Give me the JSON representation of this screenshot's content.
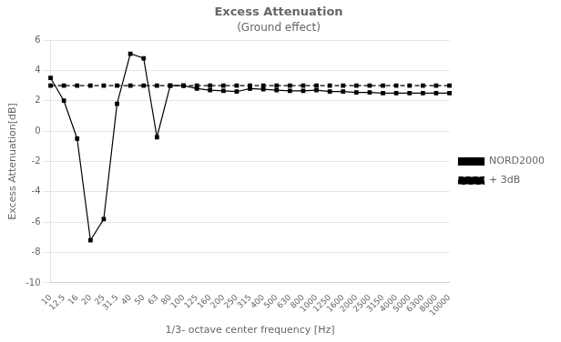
{
  "chart_data": {
    "type": "line",
    "title": "Excess Attenuation",
    "subtitle": "(Ground effect)",
    "x_label": "1/3- octave center frequency [Hz]",
    "y_label": "Excess Attenuation[dB]",
    "categories": [
      "10",
      "12.5",
      "16",
      "20",
      "25",
      "31.5",
      "40",
      "50",
      "63",
      "80",
      "100",
      "125",
      "160",
      "200",
      "250",
      "315",
      "400",
      "500",
      "630",
      "800",
      "1000",
      "1250",
      "1600",
      "2000",
      "2500",
      "3150",
      "4000",
      "5000",
      "6300",
      "8000",
      "10000"
    ],
    "series": [
      {
        "name": "NORD2000",
        "color": "#000000",
        "marker": "square",
        "line_style": "solid",
        "values": [
          3.5,
          2.0,
          -0.5,
          -7.2,
          -5.8,
          1.8,
          5.1,
          4.8,
          -0.4,
          3.0,
          3.0,
          2.8,
          2.7,
          2.65,
          2.6,
          2.8,
          2.75,
          2.7,
          2.65,
          2.65,
          2.7,
          2.6,
          2.6,
          2.55,
          2.55,
          2.5,
          2.5,
          2.5,
          2.5,
          2.5,
          2.5
        ]
      },
      {
        "name": "+ 3dB",
        "color": "#000000",
        "marker": "square",
        "line_style": "dashed",
        "values": [
          3.0,
          3.0,
          3.0,
          3.0,
          3.0,
          3.0,
          3.0,
          3.0,
          3.0,
          3.0,
          3.0,
          3.0,
          3.0,
          3.0,
          3.0,
          3.0,
          3.0,
          3.0,
          3.0,
          3.0,
          3.0,
          3.0,
          3.0,
          3.0,
          3.0,
          3.0,
          3.0,
          3.0,
          3.0,
          3.0,
          3.0
        ]
      }
    ],
    "ylim": [
      -10,
      6
    ],
    "yticks": [
      -10,
      -8,
      -6,
      -4,
      -2,
      0,
      2,
      4,
      6
    ],
    "grid": true,
    "legend": "right"
  }
}
